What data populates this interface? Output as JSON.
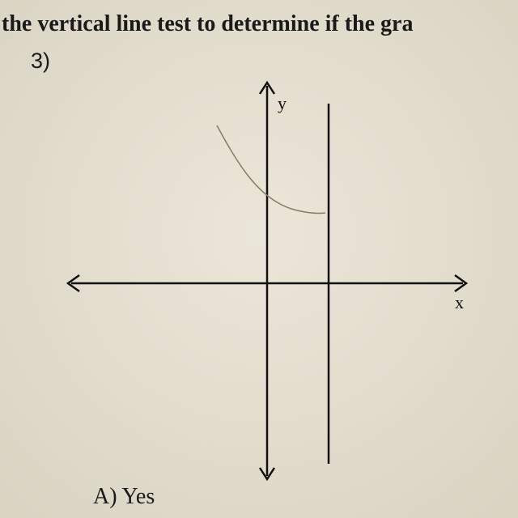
{
  "header": {
    "text": "the vertical line test to determine if the gra"
  },
  "problem": {
    "number": "3)",
    "y_label": "y",
    "x_label": "x",
    "choice_a": "A) Yes"
  }
}
